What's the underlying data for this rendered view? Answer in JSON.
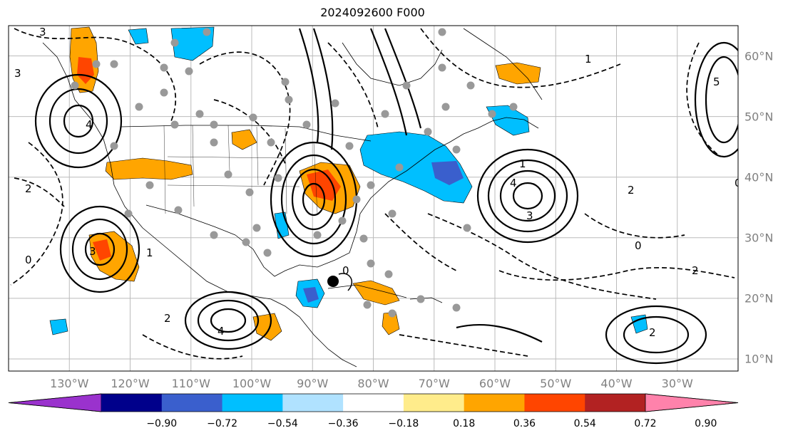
{
  "title": "2024092600 F000",
  "map": {
    "lon_min": -140,
    "lon_max": -20,
    "lat_min": 8,
    "lat_max": 65,
    "lon_labels": [
      {
        "lon": -130,
        "text": "130°W"
      },
      {
        "lon": -120,
        "text": "120°W"
      },
      {
        "lon": -110,
        "text": "110°W"
      },
      {
        "lon": -100,
        "text": "100°W"
      },
      {
        "lon": -90,
        "text": "90°W"
      },
      {
        "lon": -80,
        "text": "80°W"
      },
      {
        "lon": -70,
        "text": "70°W"
      },
      {
        "lon": -60,
        "text": "60°W"
      },
      {
        "lon": -50,
        "text": "50°W"
      },
      {
        "lon": -40,
        "text": "40°W"
      },
      {
        "lon": -30,
        "text": "30°W"
      }
    ],
    "lat_labels": [
      {
        "lat": 60,
        "text": "60°N"
      },
      {
        "lat": 50,
        "text": "50°N"
      },
      {
        "lat": 40,
        "text": "40°N"
      },
      {
        "lat": 30,
        "text": "30°N"
      },
      {
        "lat": 20,
        "text": "20°N"
      },
      {
        "lat": 10,
        "text": "10°N"
      }
    ],
    "grid_lons": [
      -130,
      -120,
      -110,
      -100,
      -90,
      -80,
      -70,
      -60,
      -50,
      -40,
      -30
    ],
    "grid_lats": [
      60,
      50,
      40,
      30,
      20,
      10
    ],
    "contour_labels": [
      "1",
      "2",
      "3",
      "4",
      "0",
      "5"
    ]
  },
  "colorbar": {
    "ticks": [
      "−0.90",
      "−0.72",
      "−0.54",
      "−0.36",
      "−0.18",
      "0.18",
      "0.36",
      "0.54",
      "0.72",
      "0.90"
    ],
    "colors": [
      "#9a32cd",
      "#00008b",
      "#3a5fcd",
      "#00bfff",
      "#b0e2ff",
      "#ffffff",
      "#ffec8b",
      "#ffa500",
      "#ff4500",
      "#b22222",
      "#ff82ab"
    ]
  }
}
